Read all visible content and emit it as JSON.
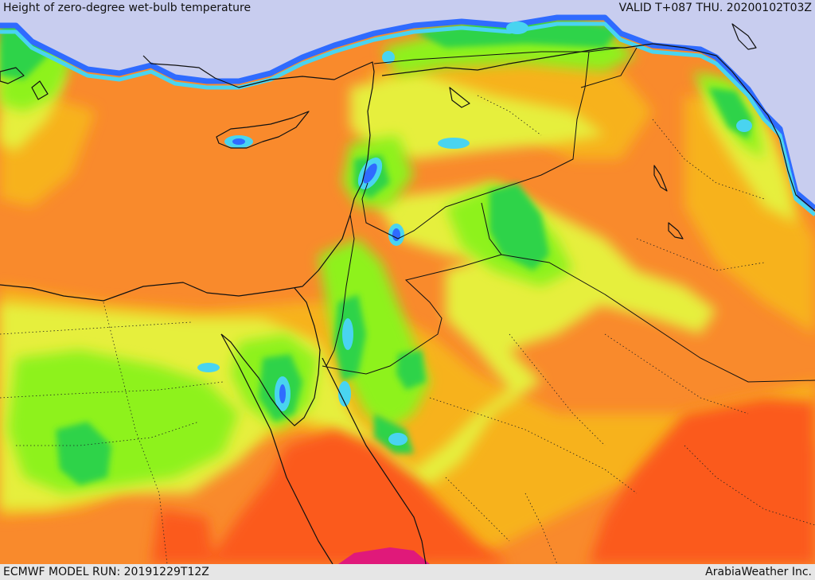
{
  "header": {
    "title": "Height of zero-degree wet-bulb temperature",
    "valid_time": "VALID T+087 THU. 20200102T03Z"
  },
  "footer": {
    "model_run": "ECMWF MODEL RUN: 20191229T12Z",
    "credit": "ArabiaWeather Inc."
  },
  "palette": {
    "sea_cold": "#c8cdef",
    "blue": "#2f6bff",
    "cyan": "#49d4f0",
    "green": "#2fd34a",
    "lime": "#8ef21e",
    "yellow": "#e6ef3c",
    "amber": "#f7b21c",
    "orange": "#f98a2c",
    "red_orange": "#fb5a1c",
    "magenta": "#e0197a",
    "border": "#111111"
  }
}
